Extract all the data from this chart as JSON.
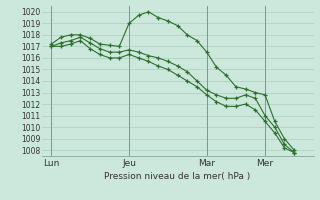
{
  "background_color": "#cce8dc",
  "grid_color": "#aacfbf",
  "line_color": "#2d6e2d",
  "title_label": "Pression niveau de la mer( hPa )",
  "ylim": [
    1007.5,
    1020.5
  ],
  "yticks": [
    1008,
    1009,
    1010,
    1011,
    1012,
    1013,
    1014,
    1015,
    1016,
    1017,
    1018,
    1019,
    1020
  ],
  "day_labels": [
    "Lun",
    "Jeu",
    "Mar",
    "Mer"
  ],
  "day_positions": [
    0,
    8,
    16,
    22
  ],
  "xlim": [
    -1,
    27
  ],
  "series1_x": [
    0,
    1,
    2,
    3,
    4,
    5,
    6,
    7,
    8,
    9,
    10,
    11,
    12,
    13,
    14,
    15,
    16,
    17,
    18,
    19,
    20,
    21,
    22,
    23,
    24,
    25
  ],
  "series1_y": [
    1017.2,
    1017.8,
    1018.0,
    1018.0,
    1017.7,
    1017.2,
    1017.1,
    1017.0,
    1019.0,
    1019.7,
    1020.0,
    1019.5,
    1019.2,
    1018.8,
    1018.0,
    1017.5,
    1016.5,
    1015.2,
    1014.5,
    1013.5,
    1013.3,
    1013.0,
    1012.8,
    1010.5,
    1009.0,
    1008.0
  ],
  "series2_x": [
    0,
    1,
    2,
    3,
    4,
    5,
    6,
    7,
    8,
    9,
    10,
    11,
    12,
    13,
    14,
    15,
    16,
    17,
    18,
    19,
    20,
    21,
    22,
    23,
    24,
    25
  ],
  "series2_y": [
    1017.0,
    1017.3,
    1017.5,
    1017.8,
    1017.3,
    1016.8,
    1016.5,
    1016.5,
    1016.7,
    1016.5,
    1016.2,
    1016.0,
    1015.7,
    1015.3,
    1014.8,
    1014.0,
    1013.2,
    1012.8,
    1012.5,
    1012.5,
    1012.8,
    1012.5,
    1011.0,
    1010.0,
    1008.5,
    1007.8
  ],
  "series3_x": [
    0,
    1,
    2,
    3,
    4,
    5,
    6,
    7,
    8,
    9,
    10,
    11,
    12,
    13,
    14,
    15,
    16,
    17,
    18,
    19,
    20,
    21,
    22,
    23,
    24,
    25
  ],
  "series3_y": [
    1017.0,
    1017.0,
    1017.2,
    1017.5,
    1016.8,
    1016.3,
    1016.0,
    1016.0,
    1016.3,
    1016.0,
    1015.7,
    1015.3,
    1015.0,
    1014.5,
    1014.0,
    1013.5,
    1012.8,
    1012.2,
    1011.8,
    1011.8,
    1012.0,
    1011.5,
    1010.5,
    1009.5,
    1008.2,
    1007.8
  ]
}
